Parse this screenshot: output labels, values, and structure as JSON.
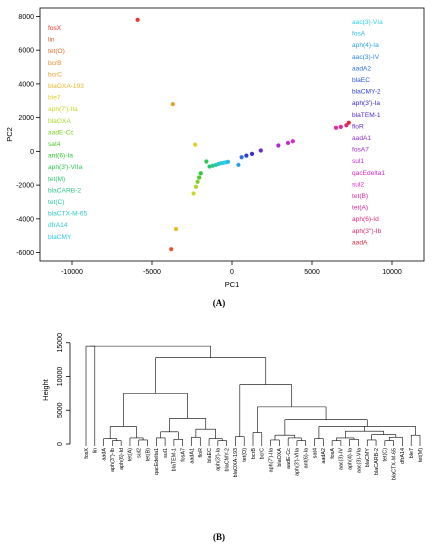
{
  "panel_a_label": "(A)",
  "panel_b_label": "(B)",
  "chart_data": [
    {
      "type": "scatter",
      "title": "",
      "xlabel": "PC1",
      "ylabel": "PC2",
      "xlim": [
        -12000,
        12000
      ],
      "ylim": [
        -6500,
        8500
      ],
      "xticks": [
        -10000,
        -5000,
        0,
        5000,
        10000
      ],
      "yticks": [
        -6000,
        -4000,
        -2000,
        0,
        2000,
        4000,
        6000,
        8000
      ],
      "grid": false,
      "legend_left": [
        {
          "name": "fosX",
          "color": "#e8322a"
        },
        {
          "name": "lin",
          "color": "#e8552a"
        },
        {
          "name": "tet(O)",
          "color": "#e8702a"
        },
        {
          "name": "bcrB",
          "color": "#e88a2a"
        },
        {
          "name": "bcrC",
          "color": "#e8a02a"
        },
        {
          "name": "blaOXA-193",
          "color": "#e8b82a"
        },
        {
          "name": "ble7",
          "color": "#e0d02a"
        },
        {
          "name": "aph(7')-IIa",
          "color": "#c8d82a"
        },
        {
          "name": "blaOXA",
          "color": "#a8d82a"
        },
        {
          "name": "aadE-Cc",
          "color": "#80d02a"
        },
        {
          "name": "sat4",
          "color": "#50c82a"
        },
        {
          "name": "ant(6)-Ia",
          "color": "#2ac832"
        },
        {
          "name": "aph(3')-VIIa",
          "color": "#2ac850"
        },
        {
          "name": "tet(M)",
          "color": "#2ac86e"
        },
        {
          "name": "blaCARB-2",
          "color": "#2ac88c"
        },
        {
          "name": "tet(C)",
          "color": "#2ac8a8"
        },
        {
          "name": "blaCTX-M-65",
          "color": "#2ac8c0"
        },
        {
          "name": "dfrA14",
          "color": "#2ac8d4"
        },
        {
          "name": "blaCMY",
          "color": "#2ac8e0"
        }
      ],
      "legend_right": [
        {
          "name": "aac(3)-VIa",
          "color": "#2ad0e8"
        },
        {
          "name": "fosA",
          "color": "#2ab8e8"
        },
        {
          "name": "aph(4)-Ia",
          "color": "#2aa0e8"
        },
        {
          "name": "aac(3)-IV",
          "color": "#2a88e8"
        },
        {
          "name": "aadA2",
          "color": "#2a70e8"
        },
        {
          "name": "blaEC",
          "color": "#2a58e0"
        },
        {
          "name": "blaCMY-2",
          "color": "#2a40d8"
        },
        {
          "name": "aph(3')-Ia",
          "color": "#3a2ad0"
        },
        {
          "name": "blaTEM-1",
          "color": "#502ad0"
        },
        {
          "name": "floR",
          "color": "#682ad0"
        },
        {
          "name": "aadA1",
          "color": "#902ad0"
        },
        {
          "name": "fosA7",
          "color": "#a82ad0"
        },
        {
          "name": "sul1",
          "color": "#c02ad0"
        },
        {
          "name": "qacEdelta1",
          "color": "#d02ac8"
        },
        {
          "name": "sul2",
          "color": "#d82ab8"
        },
        {
          "name": "tet(B)",
          "color": "#e02aa8"
        },
        {
          "name": "tet(A)",
          "color": "#e02a90"
        },
        {
          "name": "aph(6)-Id",
          "color": "#e02a78"
        },
        {
          "name": "aph(3'')-Ib",
          "color": "#e02a60"
        },
        {
          "name": "aadA",
          "color": "#e0283c"
        }
      ],
      "points": [
        {
          "x": -5900,
          "y": 7800,
          "color": "#e8322a"
        },
        {
          "x": -3800,
          "y": -5800,
          "color": "#e8552a"
        },
        {
          "x": -3500,
          "y": -4600,
          "color": "#e8b82a"
        },
        {
          "x": -3700,
          "y": 2800,
          "color": "#e8a02a"
        },
        {
          "x": -2300,
          "y": 400,
          "color": "#e0d02a"
        },
        {
          "x": -2400,
          "y": -2500,
          "color": "#c8d82a"
        },
        {
          "x": -2250,
          "y": -2100,
          "color": "#a8d82a"
        },
        {
          "x": -2150,
          "y": -1800,
          "color": "#80d02a"
        },
        {
          "x": -2050,
          "y": -1550,
          "color": "#50c82a"
        },
        {
          "x": -1950,
          "y": -1300,
          "color": "#2ac832"
        },
        {
          "x": -1600,
          "y": -600,
          "color": "#2ac850"
        },
        {
          "x": -1400,
          "y": -900,
          "color": "#2ac86e"
        },
        {
          "x": -1200,
          "y": -850,
          "color": "#2ac88c"
        },
        {
          "x": -1000,
          "y": -800,
          "color": "#2ac8a8"
        },
        {
          "x": -850,
          "y": -750,
          "color": "#2ac8c0"
        },
        {
          "x": -700,
          "y": -700,
          "color": "#2ac8d4"
        },
        {
          "x": -550,
          "y": -680,
          "color": "#2ac8e0"
        },
        {
          "x": -400,
          "y": -650,
          "color": "#2ad0e8"
        },
        {
          "x": -250,
          "y": -620,
          "color": "#2ab8e8"
        },
        {
          "x": 400,
          "y": -800,
          "color": "#2aa0e8"
        },
        {
          "x": 600,
          "y": -350,
          "color": "#2a70e8"
        },
        {
          "x": 900,
          "y": -250,
          "color": "#2a40d8"
        },
        {
          "x": 1250,
          "y": -150,
          "color": "#3a2ad0"
        },
        {
          "x": 1800,
          "y": 50,
          "color": "#682ad0"
        },
        {
          "x": 2900,
          "y": 350,
          "color": "#a82ad0"
        },
        {
          "x": 3500,
          "y": 500,
          "color": "#c02ad0"
        },
        {
          "x": 3800,
          "y": 600,
          "color": "#d02ac8"
        },
        {
          "x": 6500,
          "y": 1400,
          "color": "#e02aa8"
        },
        {
          "x": 6800,
          "y": 1450,
          "color": "#e02a90"
        },
        {
          "x": 7150,
          "y": 1550,
          "color": "#e02a78"
        },
        {
          "x": 7300,
          "y": 1700,
          "color": "#e0283c"
        }
      ]
    },
    {
      "type": "dendrogram",
      "ylabel": "Height",
      "ylim": [
        0,
        16000
      ],
      "yticks": [
        0,
        5000,
        10000,
        15000
      ],
      "leaves": [
        "fosX",
        "lin",
        "aadA",
        "aph(3'')-Ib",
        "aph(6)-Id",
        "tet(A)",
        "sul2",
        "tet(B)",
        "qacEdelta1",
        "sul1",
        "blaTEM-1",
        "fosA7",
        "aadA1",
        "floR",
        "blaEC",
        "aph(3')-Ia",
        "blaCMY-2",
        "blaOXA-193",
        "tet(O)",
        "bcrB",
        "bcrC",
        "aph(7')-IIa",
        "blaOXA",
        "aadE-Cc",
        "aph(3')-VIIa",
        "ant(6)-Ia",
        "sat4",
        "aadA2",
        "fosA",
        "aac(3)-IV",
        "aph(4)-Ia",
        "aac(3)-VIa",
        "blaCMY",
        "blaCARB-2",
        "tet(C)",
        "blaCTX-M-65",
        "dfrA14",
        "ble7",
        "tet(M)"
      ]
    }
  ]
}
